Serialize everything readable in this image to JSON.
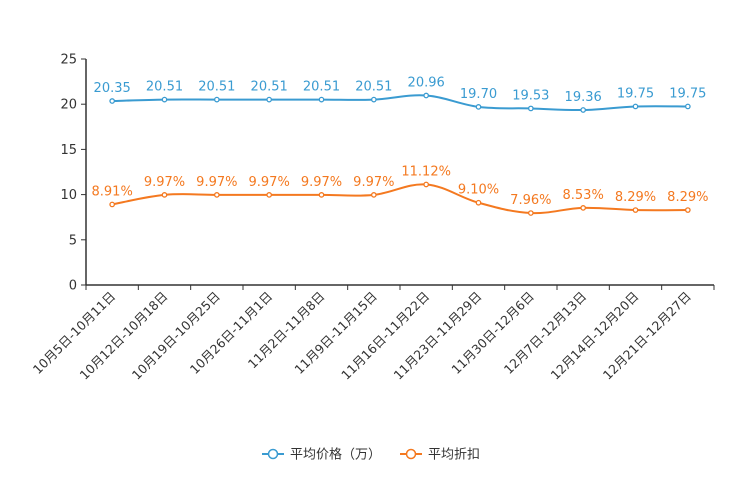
{
  "chart_data": {
    "type": "line",
    "title": "",
    "xlabel": "",
    "ylabel": "",
    "ylim": [
      0,
      25
    ],
    "yticks": [
      0,
      5,
      10,
      15,
      20,
      25
    ],
    "categories": [
      "10月5日-10月11日",
      "10月12日-10月18日",
      "10月19日-10月25日",
      "10月26日-11月1日",
      "11月2日-11月8日",
      "11月9日-11月15日",
      "11月16日-11月22日",
      "11月23日-11月29日",
      "11月30日-12月6日",
      "12月7日-12月13日",
      "12月14日-12月20日",
      "12月21日-12月27日"
    ],
    "series": [
      {
        "name": "平均价格（万）",
        "color": "#3a9bd1",
        "values": [
          20.35,
          20.51,
          20.51,
          20.51,
          20.51,
          20.51,
          20.96,
          19.7,
          19.53,
          19.36,
          19.75,
          19.75
        ],
        "labels": [
          "20.35",
          "20.51",
          "20.51",
          "20.51",
          "20.51",
          "20.51",
          "20.96",
          "19.70",
          "19.53",
          "19.36",
          "19.75",
          "19.75"
        ]
      },
      {
        "name": "平均折扣",
        "color": "#f47920",
        "values": [
          8.91,
          9.97,
          9.97,
          9.97,
          9.97,
          9.97,
          11.12,
          9.1,
          7.96,
          8.53,
          8.29,
          8.29
        ],
        "labels": [
          "8.91%",
          "9.97%",
          "9.97%",
          "9.97%",
          "9.97%",
          "9.97%",
          "11.12%",
          "9.10%",
          "7.96%",
          "8.53%",
          "8.29%",
          "8.29%"
        ]
      }
    ],
    "legend_position": "bottom-center"
  }
}
